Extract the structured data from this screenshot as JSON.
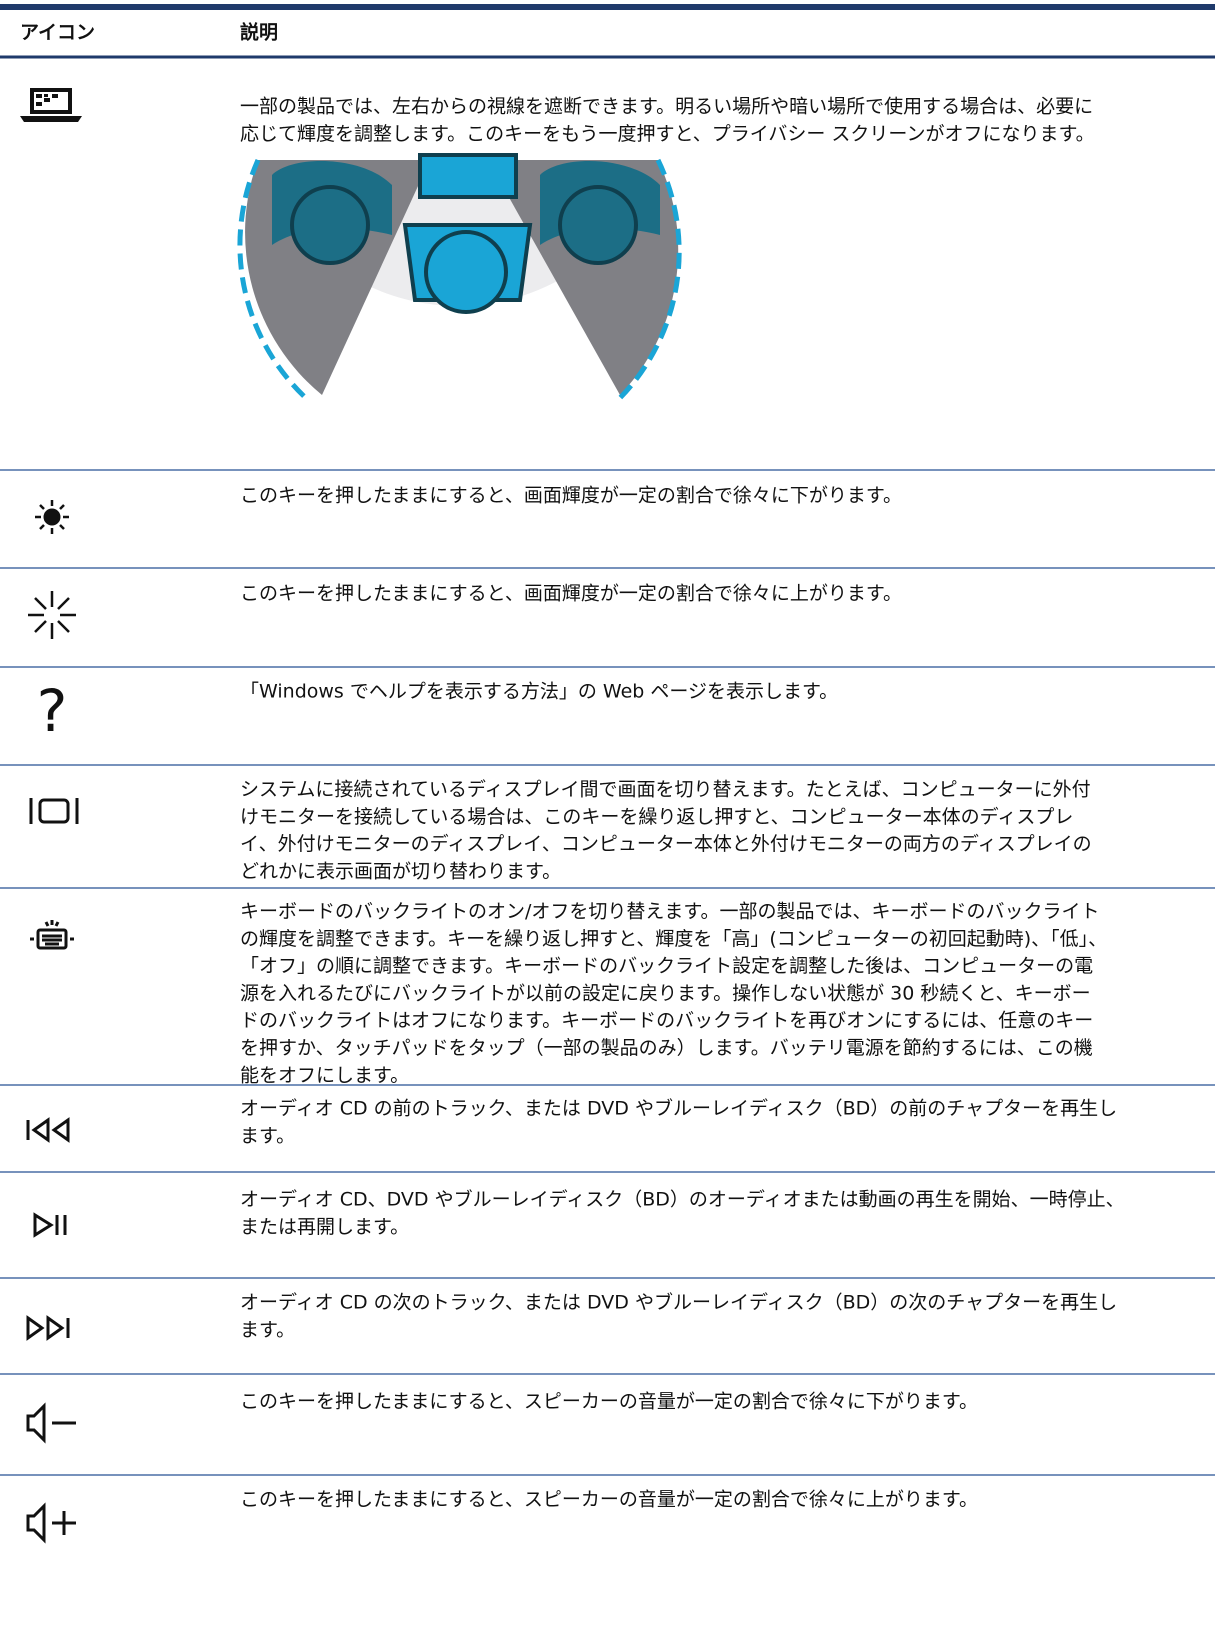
{
  "table": {
    "headers": [
      "アイコン",
      "説明"
    ],
    "rows": [
      {
        "description": [
          "一部の製品では、左右からの視線を遮断できます。明るい場所や暗い場所で使用する場合は、必要に",
          "応じて輝度を調整します。このキーをもう一度押すと、プライバシー スクリーンがオフになります。"
        ]
      },
      {
        "description": [
          "このキーを押したままにすると、画面輝度が一定の割合で徐々に下がります。"
        ]
      },
      {
        "description": [
          "このキーを押したままにすると、画面輝度が一定の割合で徐々に上がります。"
        ]
      },
      {
        "description": [
          "「Windows でヘルプを表示する方法」の Web ページを表示します。"
        ]
      },
      {
        "description": [
          "システムに接続されているディスプレイ間で画面を切り替えます。たとえば、コンピューターに外付",
          "けモニターを接続している場合は、このキーを繰り返し押すと、コンピューター本体のディスプレ",
          "イ、外付けモニターのディスプレイ、コンピューター本体と外付けモニターの両方のディスプレイの",
          "どれかに表示画面が切り替わります。"
        ]
      },
      {
        "description": [
          "キーボードのバックライトのオン/オフを切り替えます。一部の製品では、キーボードのバックライト",
          "の輝度を調整できます。キーを繰り返し押すと、輝度を「高」(コンピューターの初回起動時)、「低」、",
          "「オフ」の順に調整できます。キーボードのバックライト設定を調整した後は、コンピューターの電",
          "源を入れるたびにバックライトが以前の設定に戻ります。操作しない状態が 30 秒続くと、キーボー",
          "ドのバックライトはオフになります。キーボードのバックライトを再びオンにするには、任意のキー",
          "を押すか、タッチパッドをタップ（一部の製品のみ）します。バッテリ電源を節約するには、この機",
          "能をオフにします。"
        ]
      },
      {
        "description": [
          "オーディオ CD の前のトラック、または DVD やブルーレイディスク（BD）の前のチャプターを再生し",
          "ます。"
        ]
      },
      {
        "description": [
          "オーディオ CD、DVD やブルーレイディスク（BD）のオーディオまたは動画の再生を開始、一時停止、",
          "または再開します。"
        ]
      },
      {
        "description": [
          "オーディオ CD の次のトラック、または DVD やブルーレイディスク（BD）の次のチャプターを再生し",
          "ます。"
        ]
      },
      {
        "description": [
          "このキーを押したままにすると、スピーカーの音量が一定の割合で徐々に下がります。"
        ]
      },
      {
        "description": [
          "このキーを押したままにすると、スピーカーの音量が一定の割合で徐々に上がります。"
        ]
      }
    ]
  }
}
